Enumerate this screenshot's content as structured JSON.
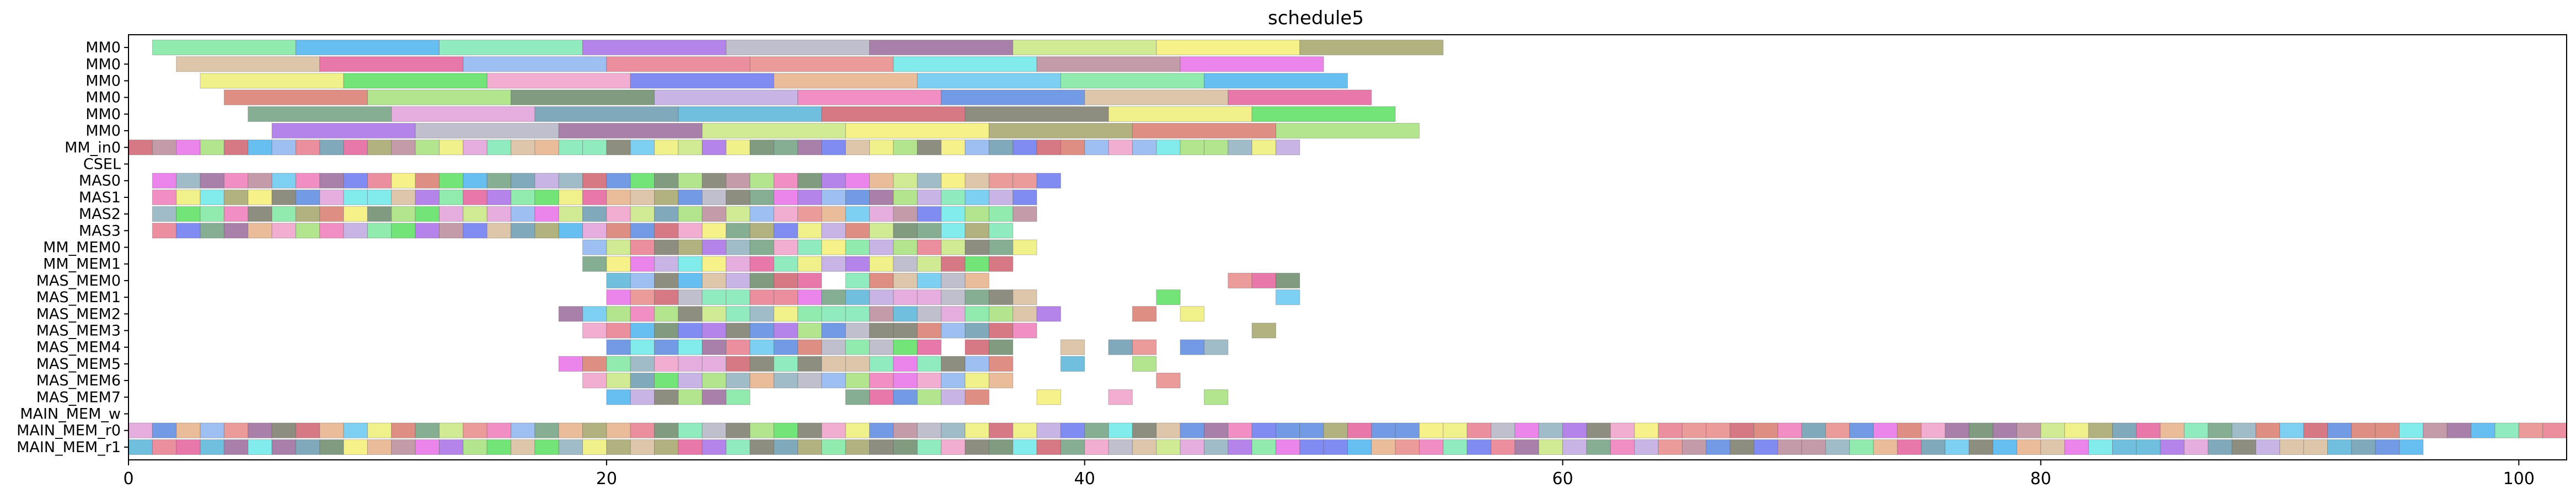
{
  "chart_data": {
    "type": "gantt",
    "title": "schedule5",
    "xlabel": "",
    "ylabel": "",
    "xlim": [
      0,
      102
    ],
    "xticks": [
      0,
      20,
      40,
      60,
      80,
      100
    ],
    "grid": false,
    "rows": [
      "MM0",
      "MM0",
      "MM0",
      "MM0",
      "MM0",
      "MM0",
      "MM_in0",
      "CSEL",
      "MAS0",
      "MAS1",
      "MAS2",
      "MAS3",
      "MM_MEM0",
      "MM_MEM1",
      "MAS_MEM0",
      "MAS_MEM1",
      "MAS_MEM2",
      "MAS_MEM3",
      "MAS_MEM4",
      "MAS_MEM5",
      "MAS_MEM6",
      "MAS_MEM7",
      "MAIN_MEM_w",
      "MAIN_MEM_r0",
      "MAIN_MEM_r1"
    ],
    "palette": [
      "#7ee8a0",
      "#7a7a6a",
      "#e86ee8",
      "#d8bc9c",
      "#a4a46a",
      "#4cb4ee",
      "#eeee78",
      "#90b0c0",
      "#e4609a",
      "#d87a6c",
      "#7ce8b4",
      "#5ae060",
      "#70a080",
      "#8cb4ee",
      "#a4e07a",
      "#a86ee8",
      "#f0a0c8",
      "#e0a0d8",
      "#e87a8c",
      "#6a8a6a",
      "#b4b4c4",
      "#6a78ee",
      "#6a9ab0",
      "#e88a88",
      "#c0a8e0",
      "#9a6a9a",
      "#e8b088",
      "#58b4d8",
      "#6ce8e8",
      "#ee7ab8",
      "#c8e880",
      "#66c8ee",
      "#d06070",
      "#b88a9a",
      "#5a8ae0",
      "#f4ee74"
    ],
    "segments": {
      "0": [
        [
          1,
          7
        ],
        [
          7,
          13
        ],
        [
          13,
          19
        ],
        [
          19,
          25
        ],
        [
          25,
          31
        ],
        [
          31,
          37
        ],
        [
          37,
          43
        ],
        [
          43,
          49
        ],
        [
          49,
          55
        ]
      ],
      "1": [
        [
          2,
          8
        ],
        [
          8,
          14
        ],
        [
          14,
          20
        ],
        [
          20,
          26
        ],
        [
          26,
          32
        ],
        [
          32,
          38
        ],
        [
          38,
          44
        ],
        [
          44,
          50
        ]
      ],
      "2": [
        [
          3,
          9
        ],
        [
          9,
          15
        ],
        [
          15,
          21
        ],
        [
          21,
          27
        ],
        [
          27,
          33
        ],
        [
          33,
          39
        ],
        [
          39,
          45
        ],
        [
          45,
          51
        ]
      ],
      "3": [
        [
          4,
          10
        ],
        [
          10,
          16
        ],
        [
          16,
          22
        ],
        [
          22,
          28
        ],
        [
          28,
          34
        ],
        [
          34,
          40
        ],
        [
          40,
          46
        ],
        [
          46,
          52
        ]
      ],
      "4": [
        [
          5,
          11
        ],
        [
          11,
          17
        ],
        [
          17,
          23
        ],
        [
          23,
          29
        ],
        [
          29,
          35
        ],
        [
          35,
          41
        ],
        [
          41,
          47
        ],
        [
          47,
          53
        ]
      ],
      "5": [
        [
          6,
          12
        ],
        [
          12,
          18
        ],
        [
          18,
          24
        ],
        [
          24,
          30
        ],
        [
          30,
          36
        ],
        [
          36,
          42
        ],
        [
          42,
          48
        ],
        [
          48,
          54
        ]
      ],
      "6": [
        [
          0,
          49
        ]
      ],
      "7": [],
      "8": [
        [
          1,
          39
        ]
      ],
      "9": [
        [
          1,
          38
        ]
      ],
      "10": [
        [
          1,
          38
        ]
      ],
      "11": [
        [
          1,
          37
        ]
      ],
      "12": [
        [
          19,
          38
        ]
      ],
      "13": [
        [
          19,
          37
        ]
      ],
      "14": [
        [
          20,
          29
        ],
        [
          30,
          36
        ],
        [
          46,
          49
        ]
      ],
      "15": [
        [
          20,
          38
        ],
        [
          43,
          44
        ],
        [
          48,
          49
        ]
      ],
      "16": [
        [
          18,
          39
        ],
        [
          42,
          43
        ],
        [
          44,
          45
        ]
      ],
      "17": [
        [
          19,
          38
        ],
        [
          47,
          48
        ]
      ],
      "18": [
        [
          20,
          34
        ],
        [
          35,
          37
        ],
        [
          39,
          40
        ],
        [
          41,
          43
        ],
        [
          44,
          46
        ]
      ],
      "19": [
        [
          18,
          37
        ],
        [
          39,
          40
        ],
        [
          42,
          43
        ]
      ],
      "20": [
        [
          19,
          37
        ],
        [
          43,
          44
        ]
      ],
      "21": [
        [
          20,
          26
        ],
        [
          30,
          36
        ],
        [
          38,
          39
        ],
        [
          41,
          42
        ],
        [
          45,
          46
        ]
      ],
      "22": [],
      "23": [
        [
          0,
          102
        ]
      ],
      "24": [
        [
          0,
          96
        ]
      ]
    }
  }
}
